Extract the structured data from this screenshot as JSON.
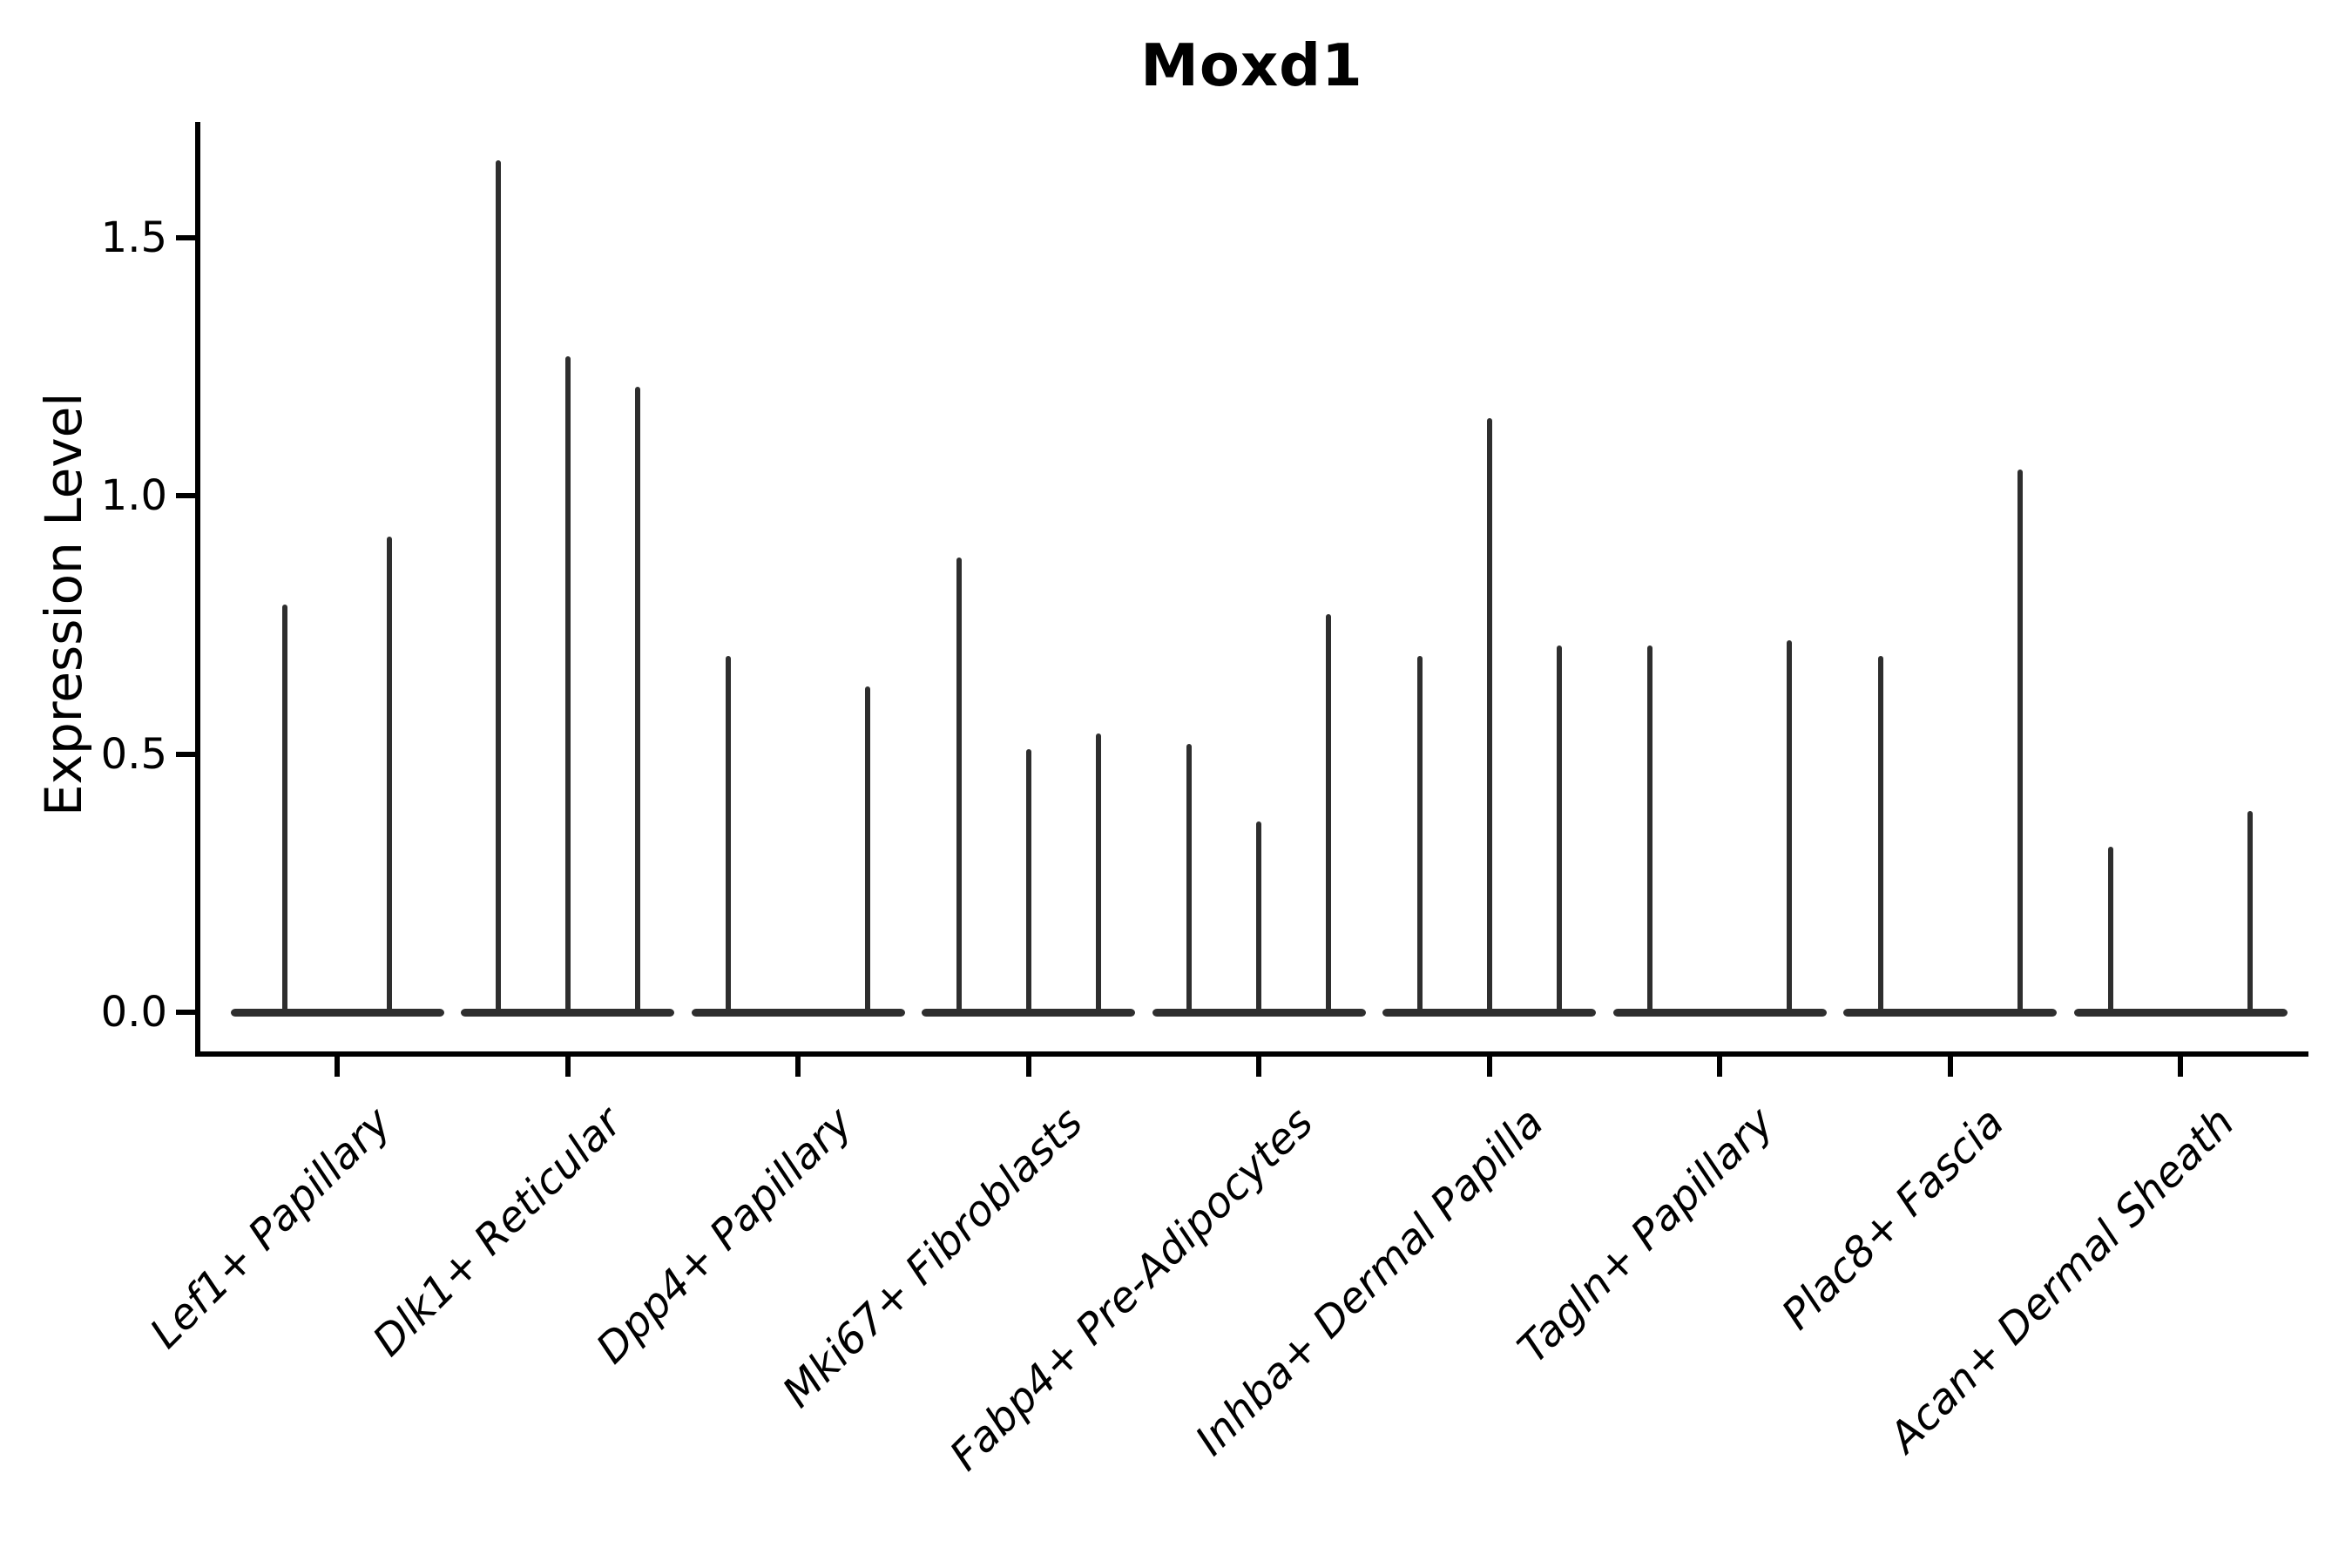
{
  "chart_data": {
    "type": "violin",
    "title": "Moxd1",
    "ylabel": "Expression Level",
    "xlabel": "",
    "ylim": [
      -0.09,
      1.73
    ],
    "grid": false,
    "legend": false,
    "yticks": [
      {
        "label": "0.0",
        "value": 0.0
      },
      {
        "label": "0.5",
        "value": 0.5
      },
      {
        "label": "1.0",
        "value": 1.0
      },
      {
        "label": "1.5",
        "value": 1.5
      }
    ],
    "categories": [
      "Lef1+ Papillary",
      "Dlk1+ Reticular",
      "Dpp4+ Papillary",
      "Mki67+ Fibroblasts",
      "Fabp4+ Pre-Adipocytes",
      "Inhba+ Dermal Papilla",
      "Tagln+ Papillary",
      "Plac8+ Fascia",
      "Acan+ Dermal Sheath"
    ],
    "groups": [
      {
        "label": "Lef1+ Papillary",
        "violins": [
          {
            "offset": -60,
            "max": 0.79
          },
          {
            "offset": 60,
            "max": 0.92
          }
        ]
      },
      {
        "label": "Dlk1+ Reticular",
        "violins": [
          {
            "offset": -80,
            "max": 1.65
          },
          {
            "offset": 0,
            "max": 1.27
          },
          {
            "offset": 80,
            "max": 1.21
          }
        ]
      },
      {
        "label": "Dpp4+ Papillary",
        "violins": [
          {
            "offset": -80,
            "max": 0.69
          },
          {
            "offset": 80,
            "max": 0.63
          }
        ]
      },
      {
        "label": "Mki67+ Fibroblasts",
        "violins": [
          {
            "offset": -80,
            "max": 0.88
          },
          {
            "offset": 0,
            "max": 0.51
          },
          {
            "offset": 80,
            "max": 0.54
          }
        ]
      },
      {
        "label": "Fabp4+ Pre-Adipocytes",
        "violins": [
          {
            "offset": -80,
            "max": 0.52
          },
          {
            "offset": 0,
            "max": 0.37
          },
          {
            "offset": 80,
            "max": 0.77
          }
        ]
      },
      {
        "label": "Inhba+ Dermal Papilla",
        "violins": [
          {
            "offset": -80,
            "max": 0.69
          },
          {
            "offset": 0,
            "max": 1.15
          },
          {
            "offset": 80,
            "max": 0.71
          }
        ]
      },
      {
        "label": "Tagln+ Papillary",
        "violins": [
          {
            "offset": -80,
            "max": 0.71
          },
          {
            "offset": 80,
            "max": 0.72
          }
        ]
      },
      {
        "label": "Plac8+ Fascia",
        "violins": [
          {
            "offset": -80,
            "max": 0.69
          },
          {
            "offset": 80,
            "max": 1.05
          }
        ]
      },
      {
        "label": "Acan+ Dermal Sheath",
        "violins": [
          {
            "offset": -80,
            "max": 0.32
          },
          {
            "offset": 80,
            "max": 0.39
          }
        ]
      }
    ],
    "colors": {
      "violin": "#2e2e2e",
      "axis": "#000000",
      "text": "#000000",
      "background": "#ffffff"
    }
  }
}
